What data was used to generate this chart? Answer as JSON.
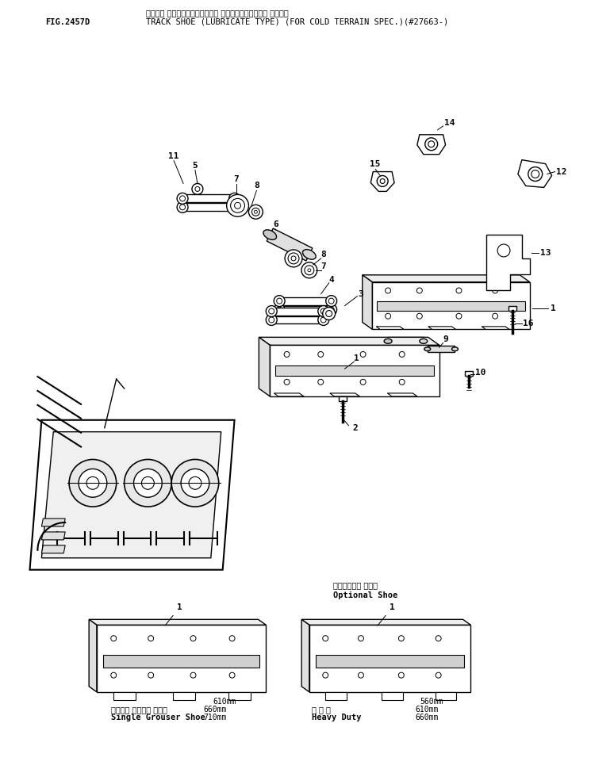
{
  "fig_label": "FIG.2457D",
  "title_jp": "トラック シュー（ルーブリケート タイプ）（ガンレイチ ショウ）",
  "title_en": "TRACK SHOE (LUBRICATE TYPE) (FOR COLD TERRAIN SPEC.)(#27663-)",
  "optional_shoe_jp": "オプショナル シュー",
  "optional_shoe_en": "Optional Shoe",
  "left_shoe_jp": "シングル グローサ シュー",
  "left_shoe_en": "Single Grouser Shoe",
  "right_shoe_jp": "重 光 式",
  "right_shoe_en": "Heavy Duty",
  "bg_color": "#ffffff",
  "text_color": "#000000"
}
